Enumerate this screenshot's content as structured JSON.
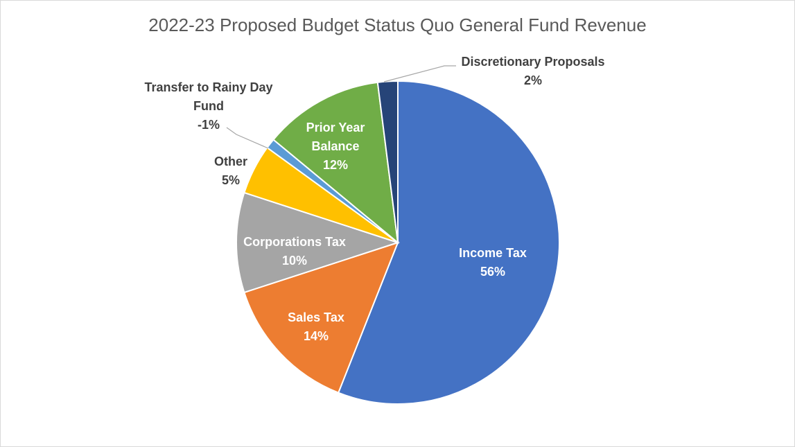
{
  "chart_data": {
    "type": "pie",
    "title": "2022-23 Proposed Budget Status Quo General Fund Revenue",
    "slices": [
      {
        "name": "Income Tax",
        "value": 56,
        "label": "56%",
        "color": "#4472C4",
        "label_color": "#ffffff"
      },
      {
        "name": "Sales Tax",
        "value": 14,
        "label": "14%",
        "color": "#ED7D31",
        "label_color": "#ffffff"
      },
      {
        "name": "Corporations Tax",
        "value": 10,
        "label": "10%",
        "color": "#A5A5A5",
        "label_color": "#ffffff"
      },
      {
        "name": "Other",
        "value": 5,
        "label": "5%",
        "color": "#FFC000",
        "label_color": "#404040"
      },
      {
        "name": "Transfer to Rainy Day Fund",
        "value": -1,
        "label": "-1%",
        "color": "#5B9BD5",
        "label_color": "#404040"
      },
      {
        "name": "Prior Year Balance",
        "value": 12,
        "label": "12%",
        "color": "#70AD47",
        "label_color": "#ffffff"
      },
      {
        "name": "Discretionary Proposals",
        "value": 2,
        "label": "2%",
        "color": "#264478",
        "label_color": "#404040"
      }
    ]
  }
}
